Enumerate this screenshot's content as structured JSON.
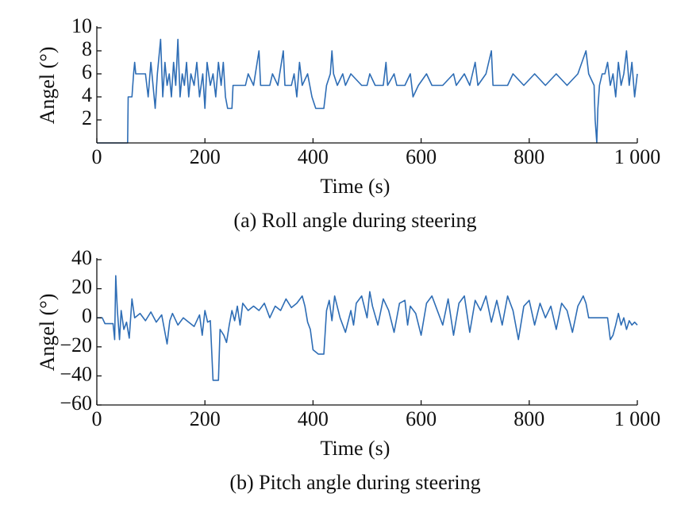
{
  "chart_data": [
    {
      "type": "line",
      "caption": "(a) Roll angle during steering",
      "xlabel": "Time (s)",
      "ylabel": "Angel (°)",
      "xlim": [
        0,
        1000
      ],
      "xticks": [
        0,
        200,
        400,
        600,
        800,
        {
          "value": 1000,
          "label": "1 000"
        }
      ],
      "ylim": [
        0,
        10
      ],
      "yticks": [
        2,
        4,
        6,
        8,
        10
      ],
      "series": [
        {
          "color": "#2e6db5",
          "x": [
            0,
            57,
            58,
            65,
            68,
            70,
            72,
            90,
            95,
            100,
            104,
            108,
            112,
            118,
            122,
            126,
            130,
            134,
            138,
            142,
            146,
            150,
            154,
            158,
            162,
            166,
            170,
            174,
            180,
            185,
            190,
            196,
            200,
            204,
            210,
            215,
            220,
            225,
            230,
            234,
            238,
            242,
            250,
            252,
            260,
            275,
            280,
            290,
            300,
            303,
            320,
            325,
            335,
            345,
            348,
            360,
            365,
            370,
            375,
            380,
            390,
            398,
            405,
            420,
            425,
            432,
            435,
            438,
            445,
            455,
            460,
            470,
            490,
            500,
            505,
            515,
            530,
            535,
            538,
            550,
            555,
            570,
            580,
            585,
            595,
            610,
            620,
            640,
            660,
            665,
            680,
            690,
            700,
            705,
            720,
            730,
            733,
            760,
            770,
            790,
            810,
            830,
            850,
            870,
            890,
            905,
            910,
            920,
            922,
            925,
            927,
            930,
            935,
            940,
            945,
            950,
            955,
            960,
            965,
            970,
            975,
            980,
            985,
            990,
            995,
            1000
          ],
          "values": [
            0,
            0,
            4,
            4,
            6,
            7,
            6,
            6,
            4,
            7,
            5,
            3,
            6,
            9,
            4,
            7,
            5,
            6,
            4,
            7,
            5,
            9,
            4,
            6,
            5,
            7,
            4,
            6,
            5,
            7,
            4,
            6,
            3,
            7,
            5,
            6,
            4,
            7,
            5,
            7,
            4,
            3,
            3,
            5,
            5,
            5,
            6,
            5,
            8,
            5,
            5,
            6,
            5,
            8,
            5,
            5,
            6,
            4,
            7,
            5,
            6,
            4,
            3,
            3,
            5,
            6,
            8,
            6,
            5,
            6,
            5,
            6,
            5,
            5,
            6,
            5,
            5,
            7,
            5,
            6,
            5,
            5,
            6,
            4,
            5,
            6,
            5,
            5,
            6,
            5,
            6,
            5,
            7,
            5,
            6,
            8,
            5,
            5,
            6,
            5,
            6,
            5,
            6,
            5,
            6,
            8,
            6,
            5,
            2,
            0,
            3,
            5,
            6,
            6,
            7,
            5,
            6,
            4,
            7,
            5,
            6,
            8,
            5,
            7,
            4,
            6
          ]
        }
      ]
    },
    {
      "type": "line",
      "caption": "(b) Pitch angle during steering",
      "xlabel": "Time (s)",
      "ylabel": "Angel (°)",
      "xlim": [
        0,
        1000
      ],
      "xticks": [
        0,
        200,
        400,
        600,
        800,
        {
          "value": 1000,
          "label": "1 000"
        }
      ],
      "ylim": [
        -60,
        40
      ],
      "yticks": [
        {
          "value": -60,
          "label": "−60"
        },
        {
          "value": -40,
          "label": "−40"
        },
        {
          "value": -20,
          "label": "−20"
        },
        0,
        20,
        40
      ],
      "series": [
        {
          "color": "#2e6db5",
          "x": [
            0,
            10,
            15,
            30,
            33,
            35,
            38,
            42,
            45,
            50,
            55,
            60,
            65,
            70,
            80,
            90,
            100,
            110,
            120,
            130,
            135,
            140,
            150,
            160,
            170,
            180,
            190,
            195,
            200,
            205,
            210,
            215,
            225,
            228,
            235,
            240,
            245,
            250,
            255,
            260,
            265,
            270,
            280,
            290,
            300,
            310,
            320,
            330,
            340,
            350,
            360,
            370,
            380,
            385,
            390,
            395,
            400,
            410,
            420,
            425,
            430,
            435,
            440,
            450,
            460,
            470,
            475,
            480,
            490,
            500,
            505,
            510,
            520,
            530,
            540,
            550,
            560,
            570,
            575,
            580,
            590,
            600,
            610,
            620,
            630,
            640,
            650,
            660,
            670,
            680,
            690,
            700,
            710,
            720,
            730,
            740,
            750,
            760,
            770,
            780,
            790,
            800,
            810,
            820,
            830,
            840,
            850,
            860,
            870,
            880,
            890,
            900,
            905,
            910,
            920,
            945,
            950,
            955,
            960,
            965,
            970,
            975,
            980,
            985,
            990,
            995,
            1000
          ],
          "values": [
            0,
            0,
            -4,
            -4,
            -15,
            29,
            5,
            -15,
            5,
            -8,
            -3,
            -14,
            13,
            0,
            3,
            -2,
            4,
            -3,
            2,
            -18,
            -2,
            3,
            -5,
            0,
            -3,
            -6,
            2,
            -12,
            5,
            -3,
            -2,
            -43,
            -43,
            -8,
            -12,
            -17,
            -5,
            5,
            -2,
            8,
            -5,
            10,
            5,
            8,
            5,
            10,
            0,
            8,
            5,
            13,
            7,
            10,
            15,
            8,
            -3,
            -8,
            -22,
            -25,
            -25,
            5,
            12,
            -2,
            15,
            0,
            -10,
            5,
            -5,
            10,
            15,
            0,
            18,
            8,
            -5,
            13,
            5,
            -10,
            10,
            12,
            -5,
            8,
            3,
            -12,
            10,
            15,
            5,
            -5,
            13,
            -12,
            10,
            15,
            -10,
            12,
            5,
            15,
            -3,
            12,
            -5,
            15,
            5,
            -15,
            8,
            12,
            -5,
            10,
            0,
            8,
            -8,
            10,
            5,
            -10,
            8,
            15,
            10,
            0,
            0,
            0,
            -15,
            -12,
            -5,
            3,
            -5,
            0,
            -8,
            -2,
            -5,
            -3,
            -5
          ]
        }
      ]
    }
  ]
}
